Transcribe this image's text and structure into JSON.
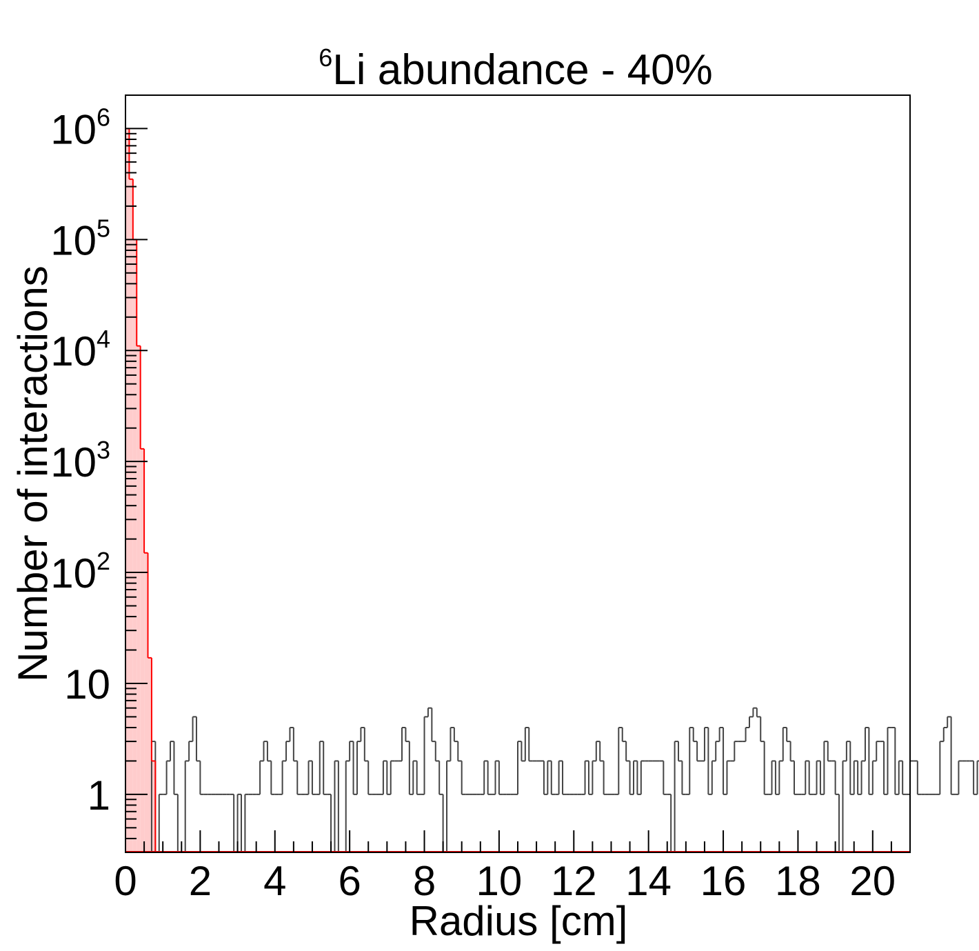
{
  "chart_data": {
    "type": "histogram",
    "title": {
      "superscript": "6",
      "text": "Li abundance - 40%"
    },
    "xlabel": "Radius [cm]",
    "ylabel": "Number of interactions",
    "xlim": [
      0,
      21
    ],
    "ylim": [
      0.3,
      2000000
    ],
    "y_scale": "log",
    "grid": false,
    "legend": "none",
    "x_ticks": [
      0,
      2,
      4,
      6,
      8,
      10,
      12,
      14,
      16,
      18,
      20
    ],
    "x_tick_labels": [
      "0",
      "2",
      "4",
      "6",
      "8",
      "10",
      "12",
      "14",
      "16",
      "18",
      "20"
    ],
    "y_ticks": [
      {
        "value": 1,
        "base": "1",
        "exp": ""
      },
      {
        "value": 10,
        "base": "10",
        "exp": ""
      },
      {
        "value": 100,
        "base": "10",
        "exp": "2"
      },
      {
        "value": 1000,
        "base": "10",
        "exp": "3"
      },
      {
        "value": 10000,
        "base": "10",
        "exp": "4"
      },
      {
        "value": 100000,
        "base": "10",
        "exp": "5"
      },
      {
        "value": 1000000,
        "base": "10",
        "exp": "6"
      }
    ],
    "bin_width": 0.1,
    "colors": {
      "capture": "#ff0000",
      "capture_fill": "#ffcccc",
      "other": "#444444",
      "frame": "#000000"
    },
    "series": [
      {
        "x_start": 0.0,
        "values": [
          1000000,
          350000,
          100000,
          11000,
          1300,
          150,
          17,
          2
        ],
        "color": "#ff0000",
        "fill": "#ffcccc"
      },
      {
        "x_start": 0.0,
        "values": [
          0,
          0,
          0,
          0,
          0,
          0,
          0,
          3,
          0,
          1,
          1,
          2,
          3,
          1,
          0,
          0,
          2,
          3,
          5,
          2,
          1,
          1,
          1,
          1,
          1,
          1,
          1,
          1,
          1,
          0,
          1,
          0,
          1,
          1,
          1,
          1,
          2,
          3,
          2,
          1,
          1,
          1,
          2,
          3,
          4,
          2,
          1,
          1,
          1,
          2,
          1,
          1,
          3,
          1,
          1,
          0,
          2,
          0,
          0,
          2,
          3,
          1,
          3,
          4,
          2,
          1,
          1,
          1,
          1,
          2,
          1,
          2,
          2,
          2,
          4,
          3,
          1,
          2,
          1,
          1,
          5,
          6,
          3,
          2,
          1,
          0,
          2,
          4,
          3,
          2,
          1,
          1,
          1,
          1,
          1,
          1,
          2,
          1,
          1,
          2,
          1,
          1,
          1,
          1,
          1,
          3,
          2,
          4,
          2,
          2,
          2,
          2,
          1,
          2,
          1,
          1,
          2,
          1,
          1,
          1,
          1,
          1,
          1,
          2,
          1,
          2,
          3,
          2,
          1,
          1,
          1,
          1,
          4,
          3,
          2,
          1,
          2,
          1,
          2,
          2,
          2,
          2,
          2,
          2,
          1,
          1,
          0,
          3,
          2,
          1,
          1,
          4,
          3,
          2,
          2,
          4,
          1,
          2,
          3,
          4,
          1,
          2,
          2,
          3,
          3,
          3,
          4,
          5,
          6,
          5,
          3,
          1,
          1,
          2,
          1,
          2,
          4,
          3,
          2,
          1,
          1,
          1,
          2,
          1,
          1,
          2,
          1,
          3,
          2,
          2,
          1,
          0,
          2,
          3,
          1,
          2,
          1,
          2,
          4,
          1,
          2,
          3,
          3,
          1,
          4,
          4,
          1,
          2,
          1,
          1,
          2,
          2,
          1,
          1,
          1,
          1,
          1,
          1,
          3,
          4,
          5,
          1,
          1,
          2,
          2,
          2,
          2,
          1,
          2,
          1,
          1,
          1,
          2,
          1,
          1,
          2,
          2,
          1,
          1,
          1,
          2,
          1,
          1,
          3,
          2,
          1,
          2,
          2,
          3,
          4,
          7,
          2,
          1,
          3,
          4,
          5,
          6,
          2,
          3,
          1,
          1,
          0,
          1,
          0,
          1,
          2,
          2,
          3,
          1,
          2,
          7,
          1,
          1,
          2,
          3,
          3,
          2,
          1,
          1,
          3,
          2,
          4,
          3,
          5,
          6,
          2,
          1,
          1,
          4,
          3,
          2,
          1,
          3,
          2,
          5,
          4,
          2,
          1,
          1,
          1,
          1,
          1,
          0,
          2,
          1,
          1,
          1,
          4,
          3,
          2,
          1,
          1,
          1,
          2,
          1,
          3,
          4,
          2,
          1,
          1,
          1,
          5,
          3,
          2,
          1,
          1,
          1,
          1,
          2,
          1,
          3,
          5,
          7,
          2,
          1,
          2,
          3,
          1,
          1,
          2,
          1,
          1,
          1,
          1,
          2,
          4,
          2,
          2,
          3,
          2,
          5,
          2,
          1,
          3,
          4,
          5,
          5,
          6,
          2,
          1,
          1,
          3,
          1,
          2,
          1,
          1,
          1,
          1,
          1,
          2,
          2,
          2,
          1,
          2,
          1,
          1,
          2,
          4,
          3,
          2,
          2,
          1,
          1,
          2,
          3,
          1,
          2,
          1,
          0,
          1,
          2,
          1,
          1,
          0,
          1,
          2,
          1,
          2,
          1,
          1,
          2,
          2,
          2,
          2,
          2,
          3,
          2,
          1,
          1,
          1,
          1,
          4,
          3,
          2,
          1,
          1,
          2,
          1,
          3,
          2,
          1,
          1,
          1,
          2,
          1,
          1,
          0,
          1,
          1,
          1,
          4,
          1,
          1,
          0,
          3,
          2,
          1,
          1,
          1,
          1,
          1,
          0,
          1,
          1,
          3,
          1,
          0
        ]
      }
    ]
  }
}
